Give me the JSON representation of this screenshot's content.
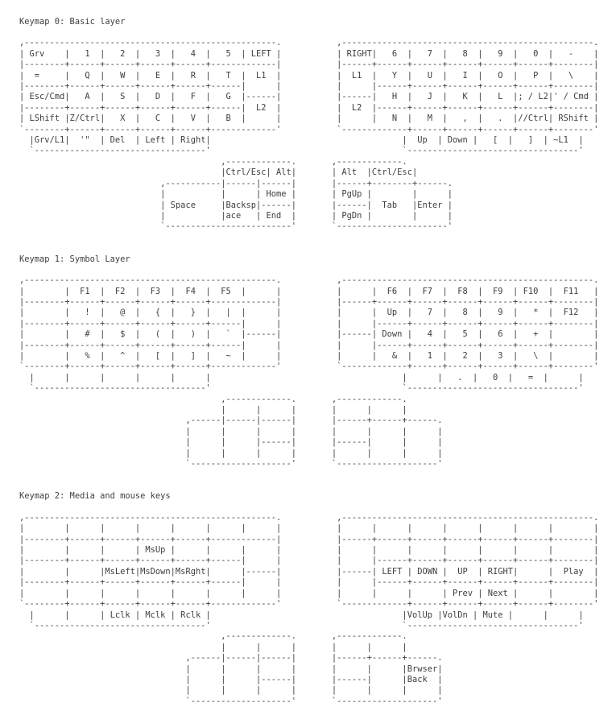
{
  "page": {
    "background": "#ffffff",
    "text_color": "#3a3f45"
  },
  "keymaps": [
    {
      "title": "Keymap 0: Basic layer",
      "lines": [
        ",--------------------------------------------------.           ,--------------------------------------------------.",
        "| Grv    |   1  |   2  |   3  |   4  |   5  | LEFT |           | RIGHT|   6  |   7  |   8  |   9  |   0  |   -    |",
        "|--------+------+------+------+------+-------------|           |------+------+------+------+------+------+--------|",
        "|  =     |   Q  |   W  |   E  |   R  |   T  |  L1  |           |  L1  |   Y  |   U  |   I  |   O  |   P  |   \\    |",
        "|--------+------+------+------+------+------|      |           |      |------+------+------+------+------+--------|",
        "| Esc/Cmd|   A  |   S  |   D  |   F  |   G  |------|           |------|   H  |   J  |   K  |   L  |; / L2|' / Cmd |",
        "|--------+------+------+------+------+------|  L2  |           |  L2  |------+------+------+------+------+--------|",
        "| LShift |Z/Ctrl|   X  |   C  |   V  |   B  |      |           |      |   N  |   M  |   ,  |   .  |//Ctrl| RShift |",
        "`--------+------+------+------+------+-------------'           `-------------+------+------+------+------+--------'",
        "  |Grv/L1|  '\"  | Del  | Left | Right|                                      |  Up  | Down |   [  |   ]  | ~L1  |",
        "  `----------------------------------'                                      `----------------------------------'",
        "                                        ,-------------.       ,-------------.",
        "                                        |Ctrl/Esc| Alt|       | Alt  |Ctrl/Esc|",
        "                            ,-----------|------|------|       |------+--------+------.",
        "                            |           |      | Home |       | PgUp |        |      |",
        "                            | Space     |Backsp|------|       |------|  Tab   |Enter |",
        "                            |           |ace   | End  |       | PgDn |        |      |",
        "                            `-------------------------'       `----------------------'"
      ]
    },
    {
      "title": "Keymap 1: Symbol Layer",
      "lines": [
        ",--------------------------------------------------.           ,--------------------------------------------------.",
        "|        |  F1  |  F2  |  F3  |  F4  |  F5  |      |           |      |  F6  |  F7  |  F8  |  F9  | F10  |  F11   |",
        "|--------+------+------+------+------+-------------|           |------+------+------+------+------+------+--------|",
        "|        |   !  |   @  |   {  |   }  |   |  |      |           |      |  Up  |   7  |   8  |   9  |   *  |  F12   |",
        "|--------+------+------+------+------+------|      |           |      |------+------+------+------+------+--------|",
        "|        |   #  |   $  |   (  |   )  |   `  |------|           |------| Down |   4  |   5  |   6  |   +  |        |",
        "|--------+------+------+------+------+------|      |           |      |------+------+------+------+------+--------|",
        "|        |   %  |   ^  |   [  |   ]  |   ~  |      |           |      |   &  |   1  |   2  |   3  |   \\  |        |",
        "`--------+------+------+------+------+-------------'           `-------------+------+------+------+------+--------'",
        "  |      |      |      |      |      |                                      |      |   .  |   0  |   =  |      |",
        "  `----------------------------------'                                      `----------------------------------'",
        "                                        ,-------------.       ,-------------.",
        "                                        |      |      |       |      |      |",
        "                                 ,------|------|------|       |------+------+------.",
        "                                 |      |      |      |       |      |      |      |",
        "                                 |      |      |------|       |------|      |      |",
        "                                 |      |      |      |       |      |      |      |",
        "                                 `--------------------'       `--------------------'"
      ]
    },
    {
      "title": "Keymap 2: Media and mouse keys",
      "lines": [
        ",--------------------------------------------------.           ,--------------------------------------------------.",
        "|        |      |      |      |      |      |      |           |      |      |      |      |      |      |        |",
        "|--------+------+------+------+------+-------------|           |------+------+------+------+------+------+--------|",
        "|        |      |      | MsUp |      |      |      |           |      |      |      |      |      |      |        |",
        "|--------+------+------+------+------+------|      |           |      |------+------+------+------+------+--------|",
        "|        |      |MsLeft|MsDown|MsRght|      |------|           |------| LEFT | DOWN |  UP  | RIGHT|      |  Play  |",
        "|--------+------+------+------+------+------|      |           |      |------+------+------+------+------+--------|",
        "|        |      |      |      |      |      |      |           |      |      |      | Prev | Next |      |        |",
        "`--------+------+------+------+------+-------------'           `-------------+------+------+------+------+--------'",
        "  |      |      | Lclk | Mclk | Rclk |                                      |VolUp |VolDn | Mute |      |      |",
        "  `----------------------------------'                                      `----------------------------------'",
        "                                        ,-------------.       ,-------------.",
        "                                        |      |      |       |      |      |",
        "                                 ,------|------|------|       |------+------+------.",
        "                                 |      |      |      |       |      |      |Brwser|",
        "                                 |      |      |------|       |------|      |Back  |",
        "                                 |      |      |      |       |      |      |      |",
        "                                 `--------------------'       `--------------------'"
      ]
    }
  ]
}
